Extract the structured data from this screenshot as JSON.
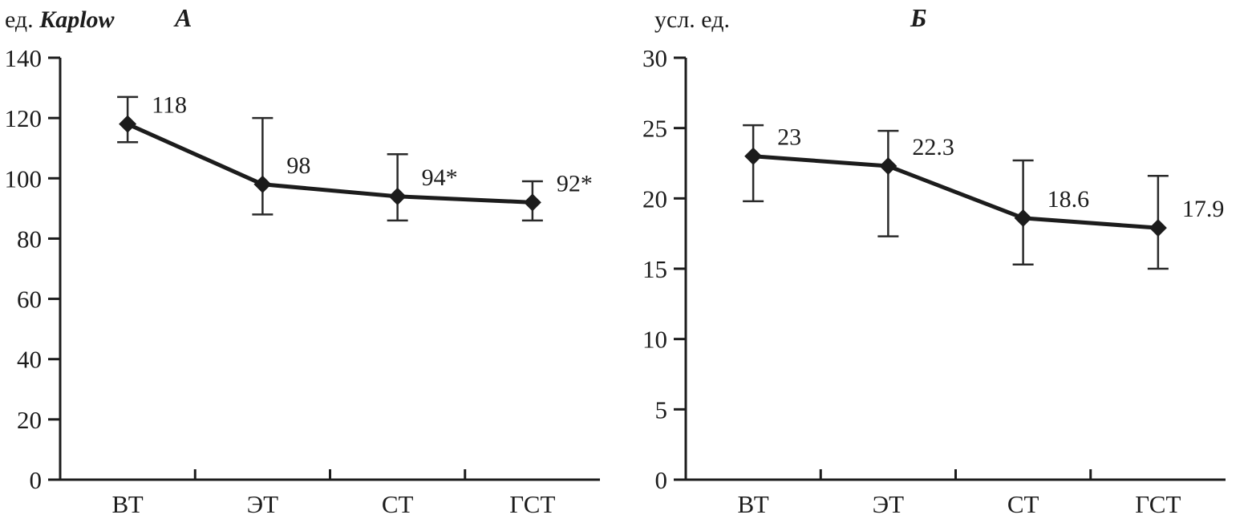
{
  "chart_data": [
    {
      "type": "line",
      "panel_label": "А",
      "unit_label": "ед.",
      "unit_label_italic": "Kaplow",
      "categories": [
        "ВТ",
        "ЭТ",
        "СТ",
        "ГСТ"
      ],
      "values": [
        118,
        98,
        94,
        92
      ],
      "point_labels": [
        "118",
        "98",
        "94*",
        "92*"
      ],
      "error_upper": [
        127,
        120,
        108,
        99
      ],
      "error_lower": [
        112,
        88,
        86,
        86
      ],
      "ylim": [
        0,
        140
      ],
      "yticks": [
        0,
        20,
        40,
        60,
        80,
        100,
        120,
        140
      ],
      "legend": "none",
      "grid": false
    },
    {
      "type": "line",
      "panel_label": "Б",
      "unit_label": "усл. ед.",
      "unit_label_italic": "",
      "categories": [
        "ВТ",
        "ЭТ",
        "СТ",
        "ГСТ"
      ],
      "values": [
        23,
        22.3,
        18.6,
        17.9
      ],
      "point_labels": [
        "23",
        "22.3",
        "18.6",
        "17.9"
      ],
      "error_upper": [
        25.2,
        24.8,
        22.7,
        21.6
      ],
      "error_lower": [
        19.8,
        17.3,
        15.3,
        15.0
      ],
      "ylim": [
        0,
        30
      ],
      "yticks": [
        0,
        5,
        10,
        15,
        20,
        25,
        30
      ],
      "legend": "none",
      "grid": false
    }
  ],
  "colors": {
    "ink": "#1c1c1c",
    "background": "#ffffff"
  }
}
